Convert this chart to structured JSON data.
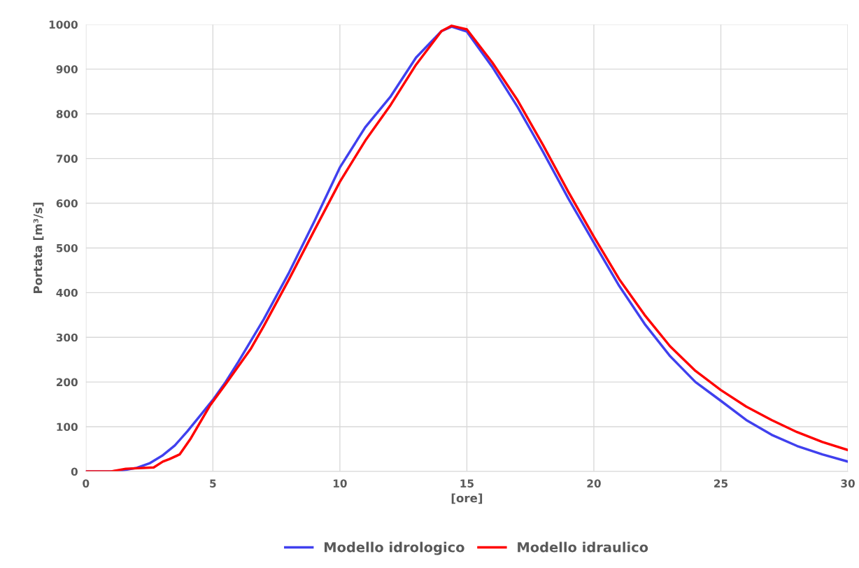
{
  "chart_data": {
    "type": "line",
    "xlabel": "[ore]",
    "ylabel": "Portata [m³/s]",
    "xlim": [
      0,
      30
    ],
    "xticks": [
      0,
      5,
      10,
      15,
      20,
      25,
      30
    ],
    "ylim": [
      0,
      1000
    ],
    "yticks": [
      0,
      100,
      200,
      300,
      400,
      500,
      600,
      700,
      800,
      900,
      1000
    ],
    "grid": true,
    "legend": "bottom",
    "marker": "none",
    "line_style": "solid",
    "series": [
      {
        "name": "Modello idrologico",
        "color": "#4040ee",
        "x": [
          0,
          1,
          1.5,
          2,
          2.5,
          3,
          3.5,
          4,
          4.5,
          5,
          5.5,
          6,
          7,
          8,
          9,
          10,
          11,
          12,
          13,
          14,
          14.4,
          15,
          16,
          17,
          18,
          19,
          20,
          21,
          22,
          23,
          24,
          25,
          26,
          27,
          28,
          29,
          30
        ],
        "values": [
          0,
          0,
          3,
          8,
          18,
          35,
          58,
          90,
          125,
          160,
          200,
          245,
          340,
          445,
          560,
          680,
          770,
          839,
          926,
          985,
          995,
          984,
          905,
          815,
          715,
          610,
          512,
          415,
          330,
          258,
          200,
          158,
          115,
          82,
          57,
          38,
          22
        ]
      },
      {
        "name": "Modello idraulico",
        "color": "#ff0000",
        "x": [
          0,
          1,
          1.57,
          2.67,
          3.03,
          3.3,
          3.69,
          4.13,
          4.88,
          5.5,
          6,
          6.5,
          7,
          8,
          9,
          10,
          11,
          12,
          13,
          14,
          14.4,
          15,
          16,
          17,
          18,
          19,
          20,
          21,
          22,
          23,
          24,
          25,
          26,
          27,
          28,
          29,
          30
        ],
        "values": [
          0,
          0,
          6,
          9,
          22,
          28,
          38,
          74,
          147,
          195,
          235,
          275,
          325,
          430,
          540,
          648,
          740,
          820,
          910,
          985,
          997,
          989,
          915,
          830,
          730,
          625,
          525,
          430,
          350,
          280,
          225,
          182,
          145,
          115,
          88,
          66,
          48
        ]
      }
    ]
  }
}
